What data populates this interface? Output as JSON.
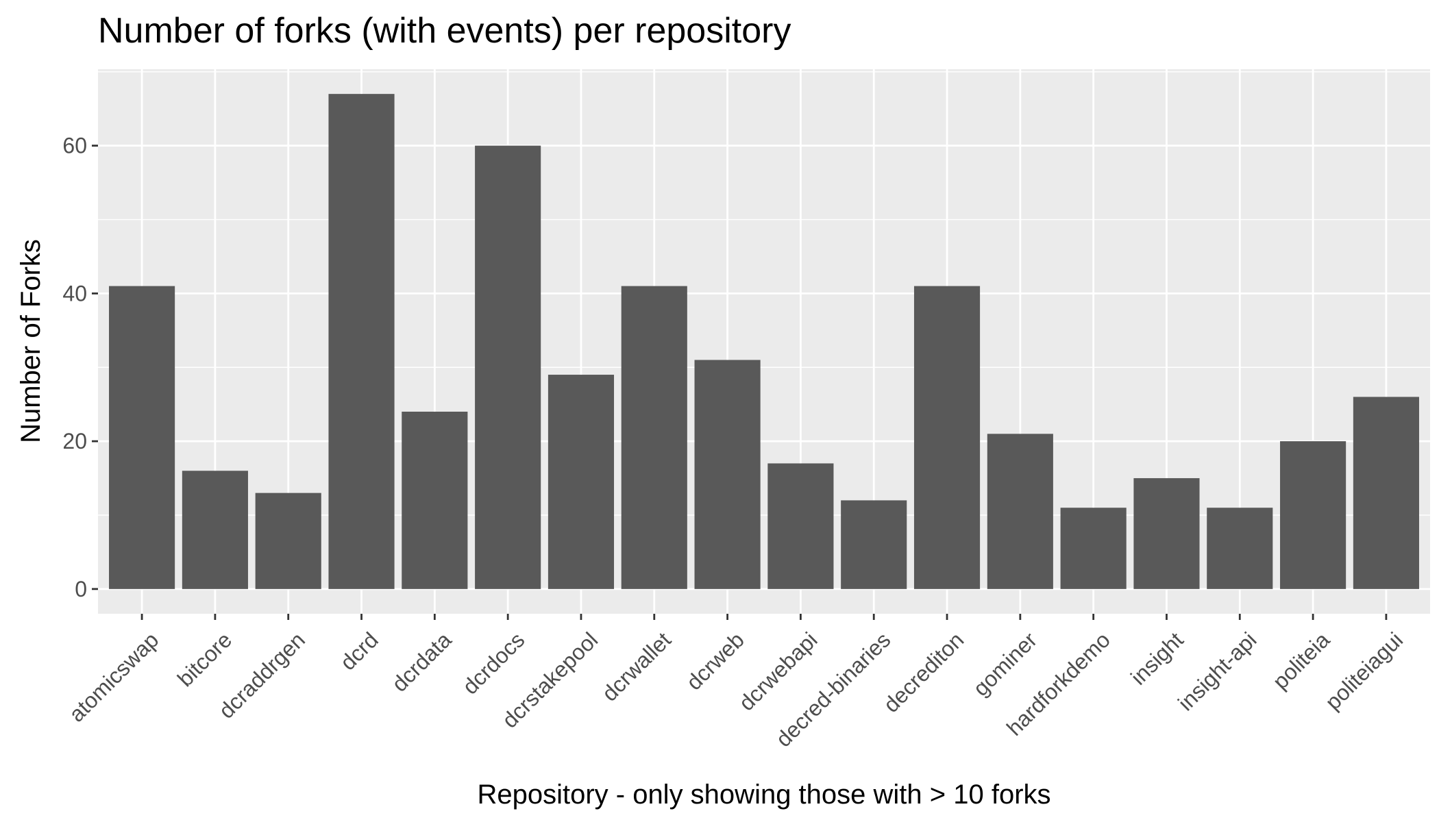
{
  "chart_data": {
    "type": "bar",
    "title": "Number of forks (with events) per repository",
    "xlabel": "Repository - only showing those with > 10 forks",
    "ylabel": "Number of Forks",
    "categories": [
      "atomicswap",
      "bitcore",
      "dcraddrgen",
      "dcrd",
      "dcrdata",
      "dcrdocs",
      "dcrstakepool",
      "dcrwallet",
      "dcrweb",
      "dcrwebapi",
      "decred-binaries",
      "decrediton",
      "gominer",
      "hardforkdemo",
      "insight",
      "insight-api",
      "politeia",
      "politeiagui"
    ],
    "values": [
      41,
      16,
      13,
      67,
      24,
      60,
      29,
      41,
      31,
      17,
      12,
      41,
      21,
      11,
      15,
      11,
      20,
      26
    ],
    "yticks": [
      0,
      20,
      40,
      60
    ],
    "ylim": [
      -3.35,
      70.35
    ],
    "grid": true,
    "legend": "none",
    "colors": {
      "panel": "#EBEBEB",
      "grid": "#FFFFFF",
      "bar": "#595959",
      "tick_text": "#4D4D4D",
      "tick_mark": "#333333",
      "text": "#000000"
    }
  }
}
